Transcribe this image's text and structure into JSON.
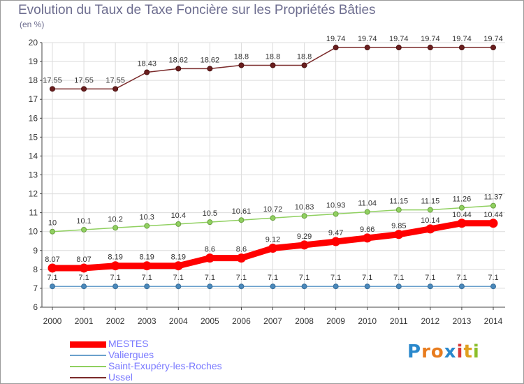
{
  "title": "Evolution du Taux de Taxe Foncière sur les Propriétés Bâties",
  "unit_label": "(en %)",
  "brand": {
    "text": "Proxiti",
    "letters": [
      "P",
      "r",
      "o",
      "x",
      "i",
      "t",
      "i"
    ],
    "colors": [
      "#2a88cc",
      "#e87c1e",
      "#e87c1e",
      "#2a88cc",
      "#d93a3a",
      "#e0a020",
      "#8bbf2a"
    ]
  },
  "chart_data": {
    "type": "line",
    "title": "Evolution du Taux de Taxe Foncière sur les Propriétés Bâties",
    "ylabel": "(en %)",
    "xlabel": "",
    "ylim": [
      6,
      20
    ],
    "yticks": [
      "6",
      "7",
      "8",
      "9",
      "10",
      "11",
      "12",
      "13",
      "14",
      "15",
      "16",
      "17",
      "18",
      "19",
      "20"
    ],
    "x": [
      "2000",
      "2001",
      "2002",
      "2003",
      "2004",
      "2005",
      "2006",
      "2007",
      "2008",
      "2009",
      "2010",
      "2011",
      "2012",
      "2013",
      "2014"
    ],
    "grid": true,
    "legend_position": "bottom-left",
    "series": [
      {
        "name": "MESTES",
        "color": "#ff0000",
        "values": [
          8.07,
          8.07,
          8.19,
          8.19,
          8.19,
          8.6,
          8.6,
          9.12,
          9.29,
          9.47,
          9.66,
          9.85,
          10.14,
          10.44,
          10.44
        ],
        "labels": [
          "8.07",
          "8.07",
          "8.19",
          "8.19",
          "8.19",
          "8.6",
          "8.6",
          "9.12",
          "9.29",
          "9.47",
          "9.66",
          "9.85",
          "10.14",
          "10.44",
          "10.44"
        ]
      },
      {
        "name": "Valiergues",
        "color": "#6aa0cc",
        "values": [
          7.1,
          7.1,
          7.1,
          7.1,
          7.1,
          7.1,
          7.1,
          7.1,
          7.1,
          7.1,
          7.1,
          7.1,
          7.1,
          7.1,
          7.1
        ],
        "labels": [
          "7.1",
          "7.1",
          "7.1",
          "7.1",
          "7.1",
          "7.1",
          "7.1",
          "7.1",
          "7.1",
          "7.1",
          "7.1",
          "7.1",
          "7.1",
          "7.1",
          "7.1"
        ]
      },
      {
        "name": "Saint-Exupéry-les-Roches",
        "color": "#90d060",
        "values": [
          10,
          10.1,
          10.2,
          10.3,
          10.4,
          10.5,
          10.61,
          10.72,
          10.83,
          10.93,
          11.04,
          11.15,
          11.15,
          11.26,
          11.37
        ],
        "labels": [
          "10",
          "10.1",
          "10.2",
          "10.3",
          "10.4",
          "10.5",
          "10.61",
          "10.72",
          "10.83",
          "10.93",
          "11.04",
          "11.15",
          "11.15",
          "11.26",
          "11.37"
        ]
      },
      {
        "name": "Ussel",
        "color": "#7a2a2a",
        "values": [
          17.55,
          17.55,
          17.55,
          18.43,
          18.62,
          18.62,
          18.8,
          18.8,
          18.8,
          19.74,
          19.74,
          19.74,
          19.74,
          19.74,
          19.74
        ],
        "labels": [
          "17.55",
          "17.55",
          "17.55",
          "18.43",
          "18.62",
          "18.62",
          "18.8",
          "18.8",
          "18.8",
          "19.74",
          "19.74",
          "19.74",
          "19.74",
          "19.74",
          "19.74"
        ]
      }
    ]
  },
  "legend": [
    {
      "label": "MESTES"
    },
    {
      "label": "Valiergues"
    },
    {
      "label": "Saint-Exupéry-les-Roches"
    },
    {
      "label": "Ussel"
    }
  ]
}
